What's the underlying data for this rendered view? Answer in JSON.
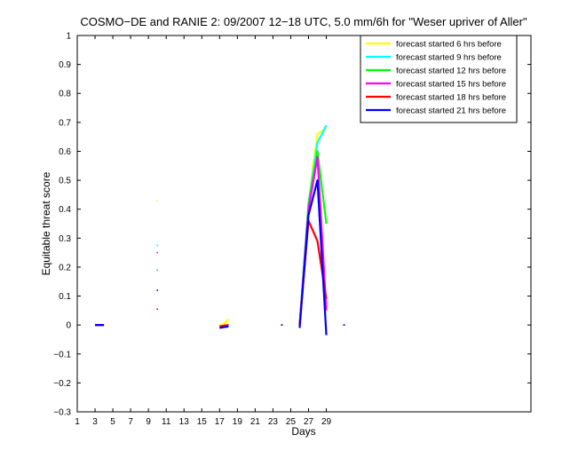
{
  "chart_data": {
    "type": "line",
    "title": "COSMO−DE and RANIE 2: 09/2007 12−18 UTC, 5.0 mm/6h for \"Weser upriver of Aller\"",
    "xlabel": "Days",
    "ylabel": "Equitable threat score",
    "xlim": [
      1,
      52
    ],
    "ylim": [
      -0.3,
      1
    ],
    "xticks": [
      1,
      3,
      5,
      7,
      9,
      11,
      13,
      15,
      17,
      19,
      21,
      23,
      25,
      27,
      29
    ],
    "xtick_labels": [
      "1",
      "3",
      "5",
      "7",
      "9",
      "11",
      "13",
      "15",
      "17",
      "19",
      "21",
      "23",
      "25",
      "27",
      "29"
    ],
    "yticks": [
      -0.3,
      -0.2,
      -0.1,
      0,
      0.1,
      0.2,
      0.3,
      0.4,
      0.5,
      0.6,
      0.7,
      0.8,
      0.9,
      1
    ],
    "ytick_labels": [
      "−0.3",
      "−0.2",
      "−0.1",
      "0",
      "0.1",
      "0.2",
      "0.3",
      "0.4",
      "0.5",
      "0.6",
      "0.7",
      "0.8",
      "0.9",
      "1"
    ],
    "grid": false,
    "legend_position": "top-right",
    "series": [
      {
        "name": "forecast started 6 hrs before",
        "color": "#ffff00",
        "segments": [
          [
            [
              3,
              0
            ],
            [
              4,
              0
            ]
          ],
          [
            [
              10,
              0.43
            ]
          ],
          [
            [
              17,
              0.0
            ],
            [
              17.3,
              0.0
            ],
            [
              17.7,
              0.01
            ],
            [
              18,
              0.02
            ]
          ],
          [
            [
              24,
              0
            ]
          ],
          [
            [
              26,
              0.0
            ],
            [
              27,
              0.4
            ],
            [
              27.5,
              0.55
            ],
            [
              28,
              0.66
            ],
            [
              29,
              0.68
            ]
          ],
          [
            [
              31,
              0
            ]
          ]
        ]
      },
      {
        "name": "forecast started 9 hrs before",
        "color": "#00ffff",
        "segments": [
          [
            [
              3,
              0
            ],
            [
              4,
              0
            ]
          ],
          [
            [
              10,
              0.275
            ]
          ],
          [
            [
              17,
              -0.005
            ],
            [
              18,
              0.0
            ]
          ],
          [
            [
              24,
              0
            ]
          ],
          [
            [
              26,
              0.0
            ],
            [
              27,
              0.42
            ],
            [
              28,
              0.63
            ],
            [
              29,
              0.69
            ]
          ],
          [
            [
              31,
              0
            ]
          ]
        ]
      },
      {
        "name": "forecast started 12 hrs before",
        "color": "#00ff00",
        "segments": [
          [
            [
              3,
              0
            ],
            [
              4,
              0
            ]
          ],
          [
            [
              10,
              0.19
            ]
          ],
          [
            [
              17,
              -0.005
            ],
            [
              18,
              0.0
            ]
          ],
          [
            [
              24,
              0
            ]
          ],
          [
            [
              26,
              0.0
            ],
            [
              27,
              0.42
            ],
            [
              28,
              0.6
            ],
            [
              29,
              0.35
            ]
          ],
          [
            [
              31,
              0
            ]
          ]
        ]
      },
      {
        "name": "forecast started 15 hrs before",
        "color": "#ff00ff",
        "segments": [
          [
            [
              3,
              0
            ],
            [
              4,
              0
            ]
          ],
          [
            [
              10,
              0.25
            ]
          ],
          [
            [
              17,
              -0.005
            ],
            [
              18,
              0.0
            ]
          ],
          [
            [
              24,
              0
            ]
          ],
          [
            [
              26,
              0.0
            ],
            [
              27,
              0.4
            ],
            [
              28,
              0.58
            ],
            [
              29,
              0.05
            ]
          ],
          [
            [
              31,
              0
            ]
          ]
        ]
      },
      {
        "name": "forecast started 18 hrs before",
        "color": "#ff0000",
        "segments": [
          [
            [
              3,
              0
            ],
            [
              4,
              0
            ]
          ],
          [
            [
              10,
              0.055
            ]
          ],
          [
            [
              17,
              -0.005
            ],
            [
              18,
              0.0
            ]
          ],
          [
            [
              24,
              0
            ]
          ],
          [
            [
              26,
              0.0
            ],
            [
              27,
              0.36
            ],
            [
              28,
              0.29
            ],
            [
              29,
              0.09
            ]
          ],
          [
            [
              31,
              0
            ]
          ]
        ]
      },
      {
        "name": "forecast started 21 hrs before",
        "color": "#0000ff",
        "segments": [
          [
            [
              3,
              0
            ],
            [
              4,
              0
            ]
          ],
          [
            [
              10,
              0.12
            ]
          ],
          [
            [
              17,
              -0.01
            ],
            [
              18,
              -0.005
            ]
          ],
          [
            [
              24,
              0
            ]
          ],
          [
            [
              26,
              -0.01
            ],
            [
              27,
              0.38
            ],
            [
              28,
              0.5
            ],
            [
              29,
              -0.035
            ]
          ],
          [
            [
              31,
              0
            ]
          ]
        ]
      }
    ]
  }
}
